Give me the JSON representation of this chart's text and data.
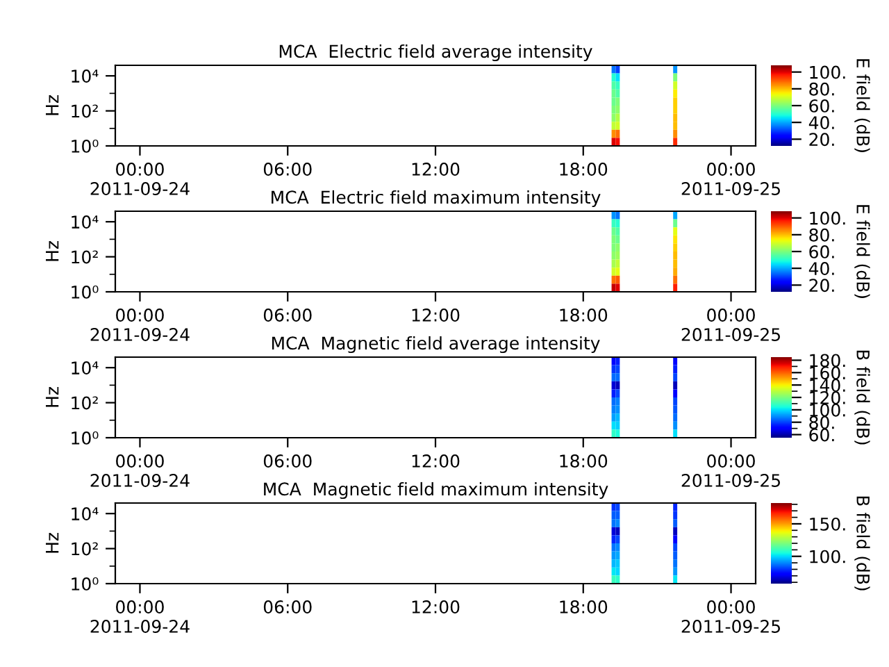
{
  "chart_data": [
    {
      "type": "heatmap",
      "title": "MCA  Electric field average intensity",
      "ylabel": "Hz",
      "clabel": "E field (dB)",
      "log": "y",
      "x": [
        "2011-09-24T19:14",
        "2011-09-24T19:24",
        "2011-09-24T19:34",
        "2011-09-24T19:44",
        "2011-09-24T19:54",
        "2011-09-24T20:04",
        "2011-09-24T20:14",
        "2011-09-24T20:24",
        "2011-09-24T20:34",
        "2011-09-24T20:44",
        "2011-09-24T20:54",
        "2011-09-24T21:04",
        "2011-09-24T21:14",
        "2011-09-24T21:24",
        "2011-09-24T21:34",
        "2011-09-24T21:44"
      ],
      "cells": [
        [
          35,
          30,
          null,
          null,
          null,
          null,
          null,
          null,
          null,
          null,
          null,
          null,
          null,
          null,
          null,
          38
        ],
        [
          50,
          45,
          null,
          null,
          null,
          null,
          null,
          null,
          null,
          null,
          null,
          null,
          null,
          null,
          null,
          60
        ],
        [
          55,
          52,
          null,
          null,
          null,
          null,
          null,
          null,
          null,
          null,
          null,
          null,
          null,
          null,
          null,
          70
        ],
        [
          58,
          55,
          null,
          null,
          null,
          null,
          null,
          null,
          null,
          null,
          null,
          null,
          null,
          null,
          null,
          75
        ],
        [
          58,
          60,
          null,
          null,
          null,
          null,
          null,
          null,
          null,
          null,
          null,
          null,
          null,
          null,
          null,
          78
        ],
        [
          60,
          62,
          null,
          null,
          null,
          null,
          null,
          null,
          null,
          null,
          null,
          null,
          null,
          null,
          null,
          78
        ],
        [
          62,
          66,
          null,
          null,
          null,
          null,
          null,
          null,
          null,
          null,
          null,
          null,
          null,
          null,
          null,
          80
        ],
        [
          68,
          70,
          null,
          null,
          null,
          null,
          null,
          null,
          null,
          null,
          null,
          null,
          null,
          null,
          null,
          80
        ],
        [
          85,
          88,
          null,
          null,
          null,
          null,
          null,
          null,
          null,
          null,
          null,
          null,
          null,
          null,
          null,
          85
        ],
        [
          100,
          98,
          null,
          null,
          null,
          null,
          null,
          null,
          null,
          null,
          null,
          null,
          null,
          null,
          null,
          95
        ]
      ],
      "xlim": [
        "2011-09-23T23:00",
        "2011-09-25T01:00"
      ],
      "ylim": [
        1,
        40000
      ],
      "yticks": [
        {
          "value": 1,
          "label": "10⁰"
        },
        {
          "value": 10,
          "label": null
        },
        {
          "value": 100,
          "label": "10²"
        },
        {
          "value": 1000,
          "label": null
        },
        {
          "value": 10000,
          "label": "10⁴"
        }
      ],
      "xticks": [
        {
          "value": "2011-09-24T00:00",
          "label": "00:00\n2011-09-24"
        },
        {
          "value": "2011-09-24T06:00",
          "label": "06:00"
        },
        {
          "value": "2011-09-24T12:00",
          "label": "12:00"
        },
        {
          "value": "2011-09-24T18:00",
          "label": "18:00"
        },
        {
          "value": "2011-09-25T00:00",
          "label": "00:00\n2011-09-25"
        }
      ],
      "clim": [
        12,
        108
      ],
      "cticks": [
        {
          "value": 20,
          "label": "20."
        },
        {
          "value": 40,
          "label": "40."
        },
        {
          "value": 60,
          "label": "60."
        },
        {
          "value": 80,
          "label": "80."
        },
        {
          "value": 100,
          "label": "100."
        }
      ]
    },
    {
      "type": "heatmap",
      "title": "MCA  Electric field maximum intensity",
      "ylabel": "Hz",
      "clabel": "E field (dB)",
      "log": "y",
      "x": [
        "2011-09-24T19:14",
        "2011-09-24T19:24",
        "2011-09-24T19:34",
        "2011-09-24T19:44",
        "2011-09-24T19:54",
        "2011-09-24T20:04",
        "2011-09-24T20:14",
        "2011-09-24T20:24",
        "2011-09-24T20:34",
        "2011-09-24T20:44",
        "2011-09-24T20:54",
        "2011-09-24T21:04",
        "2011-09-24T21:14",
        "2011-09-24T21:24",
        "2011-09-24T21:34",
        "2011-09-24T21:44"
      ],
      "cells": [
        [
          38,
          35,
          null,
          null,
          null,
          null,
          null,
          null,
          null,
          null,
          null,
          null,
          null,
          null,
          null,
          40
        ],
        [
          52,
          50,
          null,
          null,
          null,
          null,
          null,
          null,
          null,
          null,
          null,
          null,
          null,
          null,
          null,
          58
        ],
        [
          58,
          55,
          null,
          null,
          null,
          null,
          null,
          null,
          null,
          null,
          null,
          null,
          null,
          null,
          null,
          72
        ],
        [
          60,
          58,
          null,
          null,
          null,
          null,
          null,
          null,
          null,
          null,
          null,
          null,
          null,
          null,
          null,
          76
        ],
        [
          60,
          62,
          null,
          null,
          null,
          null,
          null,
          null,
          null,
          null,
          null,
          null,
          null,
          null,
          null,
          78
        ],
        [
          62,
          64,
          null,
          null,
          null,
          null,
          null,
          null,
          null,
          null,
          null,
          null,
          null,
          null,
          null,
          80
        ],
        [
          65,
          68,
          null,
          null,
          null,
          null,
          null,
          null,
          null,
          null,
          null,
          null,
          null,
          null,
          null,
          80
        ],
        [
          70,
          72,
          null,
          null,
          null,
          null,
          null,
          null,
          null,
          null,
          null,
          null,
          null,
          null,
          null,
          82
        ],
        [
          88,
          90,
          null,
          null,
          null,
          null,
          null,
          null,
          null,
          null,
          null,
          null,
          null,
          null,
          null,
          88
        ],
        [
          102,
          100,
          null,
          null,
          null,
          null,
          null,
          null,
          null,
          null,
          null,
          null,
          null,
          null,
          null,
          96
        ]
      ],
      "xlim": [
        "2011-09-23T23:00",
        "2011-09-25T01:00"
      ],
      "ylim": [
        1,
        40000
      ],
      "yticks": [
        {
          "value": 1,
          "label": "10⁰"
        },
        {
          "value": 10,
          "label": null
        },
        {
          "value": 100,
          "label": "10²"
        },
        {
          "value": 1000,
          "label": null
        },
        {
          "value": 10000,
          "label": "10⁴"
        }
      ],
      "xticks": [
        {
          "value": "2011-09-24T00:00",
          "label": "00:00\n2011-09-24"
        },
        {
          "value": "2011-09-24T06:00",
          "label": "06:00"
        },
        {
          "value": "2011-09-24T12:00",
          "label": "12:00"
        },
        {
          "value": "2011-09-24T18:00",
          "label": "18:00"
        },
        {
          "value": "2011-09-25T00:00",
          "label": "00:00\n2011-09-25"
        }
      ],
      "clim": [
        12,
        108
      ],
      "cticks": [
        {
          "value": 20,
          "label": "20."
        },
        {
          "value": 40,
          "label": "40."
        },
        {
          "value": 60,
          "label": "60."
        },
        {
          "value": 80,
          "label": "80."
        },
        {
          "value": 100,
          "label": "100."
        }
      ]
    },
    {
      "type": "heatmap",
      "title": "MCA  Magnetic field average intensity",
      "ylabel": "Hz",
      "clabel": "B field (dB)",
      "log": "y",
      "x": [
        "2011-09-24T19:14",
        "2011-09-24T19:24",
        "2011-09-24T19:34",
        "2011-09-24T19:44",
        "2011-09-24T19:54",
        "2011-09-24T20:04",
        "2011-09-24T20:14",
        "2011-09-24T20:24",
        "2011-09-24T20:34",
        "2011-09-24T20:44",
        "2011-09-24T20:54",
        "2011-09-24T21:04",
        "2011-09-24T21:14",
        "2011-09-24T21:24",
        "2011-09-24T21:34",
        "2011-09-24T21:44"
      ],
      "cells": [
        [
          72,
          75,
          null,
          null,
          null,
          null,
          null,
          null,
          null,
          null,
          null,
          null,
          null,
          null,
          null,
          72
        ],
        [
          78,
          80,
          null,
          null,
          null,
          null,
          null,
          null,
          null,
          null,
          null,
          null,
          null,
          null,
          null,
          75
        ],
        [
          85,
          85,
          null,
          null,
          null,
          null,
          null,
          null,
          null,
          null,
          null,
          null,
          null,
          null,
          null,
          80
        ],
        [
          65,
          62,
          null,
          null,
          null,
          null,
          null,
          null,
          null,
          null,
          null,
          null,
          null,
          null,
          null,
          62
        ],
        [
          75,
          80,
          null,
          null,
          null,
          null,
          null,
          null,
          null,
          null,
          null,
          null,
          null,
          null,
          null,
          70
        ],
        [
          85,
          88,
          null,
          null,
          null,
          null,
          null,
          null,
          null,
          null,
          null,
          null,
          null,
          null,
          null,
          80
        ],
        [
          88,
          90,
          null,
          null,
          null,
          null,
          null,
          null,
          null,
          null,
          null,
          null,
          null,
          null,
          null,
          82
        ],
        [
          92,
          95,
          null,
          null,
          null,
          null,
          null,
          null,
          null,
          null,
          null,
          null,
          null,
          null,
          null,
          85
        ],
        [
          100,
          98,
          null,
          null,
          null,
          null,
          null,
          null,
          null,
          null,
          null,
          null,
          null,
          null,
          null,
          90
        ],
        [
          108,
          105,
          null,
          null,
          null,
          null,
          null,
          null,
          null,
          null,
          null,
          null,
          null,
          null,
          null,
          100
        ]
      ],
      "xlim": [
        "2011-09-23T23:00",
        "2011-09-25T01:00"
      ],
      "ylim": [
        1,
        40000
      ],
      "yticks": [
        {
          "value": 1,
          "label": "10⁰"
        },
        {
          "value": 10,
          "label": null
        },
        {
          "value": 100,
          "label": "10²"
        },
        {
          "value": 1000,
          "label": null
        },
        {
          "value": 10000,
          "label": "10⁴"
        }
      ],
      "xticks": [
        {
          "value": "2011-09-24T00:00",
          "label": "00:00\n2011-09-24"
        },
        {
          "value": "2011-09-24T06:00",
          "label": "06:00"
        },
        {
          "value": "2011-09-24T12:00",
          "label": "12:00"
        },
        {
          "value": "2011-09-24T18:00",
          "label": "18:00"
        },
        {
          "value": "2011-09-25T00:00",
          "label": "00:00\n2011-09-25"
        }
      ],
      "clim": [
        55,
        185
      ],
      "cticks": [
        {
          "value": 60,
          "label": "60."
        },
        {
          "value": 70,
          "label": null
        },
        {
          "value": 80,
          "label": "80."
        },
        {
          "value": 90,
          "label": null
        },
        {
          "value": 100,
          "label": "100."
        },
        {
          "value": 110,
          "label": null
        },
        {
          "value": 120,
          "label": "120."
        },
        {
          "value": 130,
          "label": null
        },
        {
          "value": 140,
          "label": "140."
        },
        {
          "value": 150,
          "label": null
        },
        {
          "value": 160,
          "label": "160."
        },
        {
          "value": 170,
          "label": null
        },
        {
          "value": 180,
          "label": "180."
        }
      ]
    },
    {
      "type": "heatmap",
      "title": "MCA  Magnetic field maximum intensity",
      "ylabel": "Hz",
      "clabel": "B field (dB)",
      "log": "y",
      "x": [
        "2011-09-24T19:14",
        "2011-09-24T19:24",
        "2011-09-24T19:34",
        "2011-09-24T19:44",
        "2011-09-24T19:54",
        "2011-09-24T20:04",
        "2011-09-24T20:14",
        "2011-09-24T20:24",
        "2011-09-24T20:34",
        "2011-09-24T20:44",
        "2011-09-24T20:54",
        "2011-09-24T21:04",
        "2011-09-24T21:14",
        "2011-09-24T21:24",
        "2011-09-24T21:34",
        "2011-09-24T21:44"
      ],
      "cells": [
        [
          80,
          82,
          null,
          null,
          null,
          null,
          null,
          null,
          null,
          null,
          null,
          null,
          null,
          null,
          null,
          78
        ],
        [
          85,
          85,
          null,
          null,
          null,
          null,
          null,
          null,
          null,
          null,
          null,
          null,
          null,
          null,
          null,
          80
        ],
        [
          88,
          90,
          null,
          null,
          null,
          null,
          null,
          null,
          null,
          null,
          null,
          null,
          null,
          null,
          null,
          85
        ],
        [
          68,
          65,
          null,
          null,
          null,
          null,
          null,
          null,
          null,
          null,
          null,
          null,
          null,
          null,
          null,
          65
        ],
        [
          78,
          82,
          null,
          null,
          null,
          null,
          null,
          null,
          null,
          null,
          null,
          null,
          null,
          null,
          null,
          72
        ],
        [
          88,
          90,
          null,
          null,
          null,
          null,
          null,
          null,
          null,
          null,
          null,
          null,
          null,
          null,
          null,
          82
        ],
        [
          92,
          94,
          null,
          null,
          null,
          null,
          null,
          null,
          null,
          null,
          null,
          null,
          null,
          null,
          null,
          85
        ],
        [
          96,
          98,
          null,
          null,
          null,
          null,
          null,
          null,
          null,
          null,
          null,
          null,
          null,
          null,
          null,
          88
        ],
        [
          102,
          100,
          null,
          null,
          null,
          null,
          null,
          null,
          null,
          null,
          null,
          null,
          null,
          null,
          null,
          92
        ],
        [
          110,
          108,
          null,
          null,
          null,
          null,
          null,
          null,
          null,
          null,
          null,
          null,
          null,
          null,
          null,
          102
        ]
      ],
      "xlim": [
        "2011-09-23T23:00",
        "2011-09-25T01:00"
      ],
      "ylim": [
        1,
        40000
      ],
      "yticks": [
        {
          "value": 1,
          "label": "10⁰"
        },
        {
          "value": 10,
          "label": null
        },
        {
          "value": 100,
          "label": "10²"
        },
        {
          "value": 1000,
          "label": null
        },
        {
          "value": 10000,
          "label": "10⁴"
        }
      ],
      "xticks": [
        {
          "value": "2011-09-24T00:00",
          "label": "00:00\n2011-09-24"
        },
        {
          "value": "2011-09-24T06:00",
          "label": "06:00"
        },
        {
          "value": "2011-09-24T12:00",
          "label": "12:00"
        },
        {
          "value": "2011-09-24T18:00",
          "label": "18:00"
        },
        {
          "value": "2011-09-25T00:00",
          "label": "00:00\n2011-09-25"
        }
      ],
      "clim": [
        58,
        182
      ],
      "cticks": [
        {
          "value": 60,
          "label": null
        },
        {
          "value": 70,
          "label": null
        },
        {
          "value": 80,
          "label": null
        },
        {
          "value": 90,
          "label": null
        },
        {
          "value": 100,
          "label": "100."
        },
        {
          "value": 110,
          "label": null
        },
        {
          "value": 120,
          "label": null
        },
        {
          "value": 130,
          "label": null
        },
        {
          "value": 140,
          "label": null
        },
        {
          "value": 150,
          "label": "150."
        },
        {
          "value": 160,
          "label": null
        },
        {
          "value": 170,
          "label": null
        },
        {
          "value": 180,
          "label": null
        }
      ]
    }
  ]
}
